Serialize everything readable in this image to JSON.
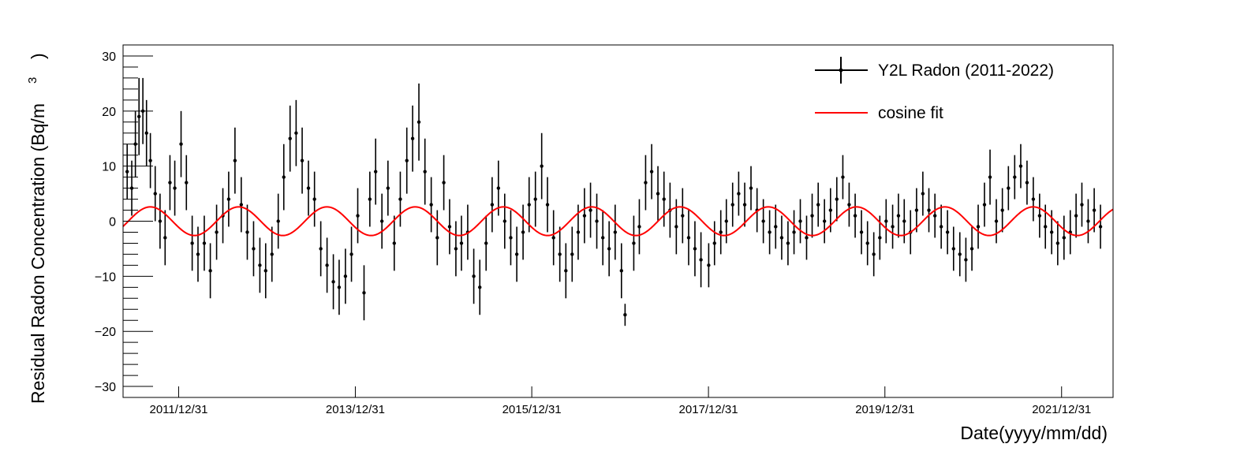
{
  "chart_data": {
    "type": "scatter",
    "title": "",
    "xlabel": "Date(yyyy/mm/dd)",
    "ylabel": "Residual Radon Concentration (Bq/m",
    "ylabel_superscript": "3",
    "ylabel_close": ")",
    "xlim": [
      "2011-05-15",
      "2022-08-01"
    ],
    "ylim": [
      -32,
      32
    ],
    "x_ticks": [
      {
        "date": "2011-12-31",
        "label": "2011/12/31"
      },
      {
        "date": "2013-12-31",
        "label": "2013/12/31"
      },
      {
        "date": "2015-12-31",
        "label": "2015/12/31"
      },
      {
        "date": "2017-12-31",
        "label": "2017/12/31"
      },
      {
        "date": "2019-12-31",
        "label": "2019/12/31"
      },
      {
        "date": "2021-12-31",
        "label": "2021/12/31"
      }
    ],
    "y_ticks": [
      30,
      20,
      10,
      0,
      -10,
      -20,
      -30
    ],
    "y_tick_labels": [
      "30",
      "20",
      "10",
      "0",
      "−10",
      "−20",
      "−30"
    ],
    "grid": false,
    "legend_position": "top-right",
    "legend": [
      {
        "label": "Y2L Radon (2011-2022)",
        "color": "#000000",
        "marker": "point-with-errorbars"
      },
      {
        "label": "cosine fit",
        "color": "#ff0000",
        "marker": "line"
      }
    ],
    "series": [
      {
        "name": "Y2L Radon (2011-2022)",
        "color": "#000000",
        "points": [
          {
            "x": "2011-06-01",
            "y": 9,
            "err": 5
          },
          {
            "x": "2011-06-20",
            "y": 6,
            "err": 5
          },
          {
            "x": "2011-07-05",
            "y": 14,
            "err": 6
          },
          {
            "x": "2011-07-20",
            "y": 19,
            "err": 7
          },
          {
            "x": "2011-08-05",
            "y": 20,
            "err": 6
          },
          {
            "x": "2011-08-20",
            "y": 16,
            "err": 6
          },
          {
            "x": "2011-09-05",
            "y": 11,
            "err": 5
          },
          {
            "x": "2011-09-25",
            "y": 5,
            "err": 5
          },
          {
            "x": "2011-10-15",
            "y": 0,
            "err": 5
          },
          {
            "x": "2011-11-05",
            "y": -3,
            "err": 5
          },
          {
            "x": "2011-11-25",
            "y": 7,
            "err": 5
          },
          {
            "x": "2011-12-15",
            "y": 6,
            "err": 5
          },
          {
            "x": "2012-01-10",
            "y": 14,
            "err": 6
          },
          {
            "x": "2012-02-01",
            "y": 7,
            "err": 5
          },
          {
            "x": "2012-02-25",
            "y": -4,
            "err": 5
          },
          {
            "x": "2012-03-20",
            "y": -6,
            "err": 5
          },
          {
            "x": "2012-04-15",
            "y": -4,
            "err": 5
          },
          {
            "x": "2012-05-10",
            "y": -9,
            "err": 5
          },
          {
            "x": "2012-06-05",
            "y": -2,
            "err": 5
          },
          {
            "x": "2012-07-01",
            "y": 1,
            "err": 5
          },
          {
            "x": "2012-07-25",
            "y": 4,
            "err": 5
          },
          {
            "x": "2012-08-20",
            "y": 11,
            "err": 6
          },
          {
            "x": "2012-09-15",
            "y": 3,
            "err": 5
          },
          {
            "x": "2012-10-10",
            "y": -2,
            "err": 5
          },
          {
            "x": "2012-11-05",
            "y": -5,
            "err": 5
          },
          {
            "x": "2012-12-01",
            "y": -8,
            "err": 5
          },
          {
            "x": "2012-12-25",
            "y": -9,
            "err": 5
          },
          {
            "x": "2013-01-20",
            "y": -6,
            "err": 5
          },
          {
            "x": "2013-02-15",
            "y": 0,
            "err": 5
          },
          {
            "x": "2013-03-10",
            "y": 8,
            "err": 6
          },
          {
            "x": "2013-04-05",
            "y": 15,
            "err": 6
          },
          {
            "x": "2013-04-30",
            "y": 16,
            "err": 6
          },
          {
            "x": "2013-05-25",
            "y": 11,
            "err": 6
          },
          {
            "x": "2013-06-20",
            "y": 6,
            "err": 5
          },
          {
            "x": "2013-07-15",
            "y": 4,
            "err": 5
          },
          {
            "x": "2013-08-10",
            "y": -5,
            "err": 5
          },
          {
            "x": "2013-09-05",
            "y": -8,
            "err": 5
          },
          {
            "x": "2013-10-01",
            "y": -11,
            "err": 5
          },
          {
            "x": "2013-10-25",
            "y": -12,
            "err": 5
          },
          {
            "x": "2013-11-20",
            "y": -10,
            "err": 5
          },
          {
            "x": "2013-12-15",
            "y": -6,
            "err": 5
          },
          {
            "x": "2014-01-10",
            "y": 1,
            "err": 5
          },
          {
            "x": "2014-02-05",
            "y": -13,
            "err": 5
          },
          {
            "x": "2014-03-01",
            "y": 4,
            "err": 5
          },
          {
            "x": "2014-03-25",
            "y": 9,
            "err": 6
          },
          {
            "x": "2014-04-20",
            "y": 0,
            "err": 5
          },
          {
            "x": "2014-05-15",
            "y": 6,
            "err": 5
          },
          {
            "x": "2014-06-10",
            "y": -4,
            "err": 5
          },
          {
            "x": "2014-07-05",
            "y": 4,
            "err": 5
          },
          {
            "x": "2014-08-01",
            "y": 11,
            "err": 6
          },
          {
            "x": "2014-08-25",
            "y": 15,
            "err": 6
          },
          {
            "x": "2014-09-20",
            "y": 18,
            "err": 7
          },
          {
            "x": "2014-10-15",
            "y": 9,
            "err": 6
          },
          {
            "x": "2014-11-10",
            "y": 3,
            "err": 5
          },
          {
            "x": "2014-12-05",
            "y": -3,
            "err": 5
          },
          {
            "x": "2015-01-01",
            "y": 7,
            "err": 5
          },
          {
            "x": "2015-01-25",
            "y": -1,
            "err": 5
          },
          {
            "x": "2015-02-20",
            "y": -5,
            "err": 5
          },
          {
            "x": "2015-03-15",
            "y": -4,
            "err": 5
          },
          {
            "x": "2015-04-10",
            "y": -2,
            "err": 5
          },
          {
            "x": "2015-05-05",
            "y": -10,
            "err": 5
          },
          {
            "x": "2015-05-30",
            "y": -12,
            "err": 5
          },
          {
            "x": "2015-06-25",
            "y": -4,
            "err": 5
          },
          {
            "x": "2015-07-20",
            "y": 3,
            "err": 5
          },
          {
            "x": "2015-08-15",
            "y": 6,
            "err": 5
          },
          {
            "x": "2015-09-10",
            "y": 0,
            "err": 5
          },
          {
            "x": "2015-10-05",
            "y": -3,
            "err": 5
          },
          {
            "x": "2015-10-30",
            "y": -6,
            "err": 5
          },
          {
            "x": "2015-11-25",
            "y": -2,
            "err": 5
          },
          {
            "x": "2015-12-20",
            "y": 3,
            "err": 5
          },
          {
            "x": "2016-01-15",
            "y": 4,
            "err": 5
          },
          {
            "x": "2016-02-10",
            "y": 10,
            "err": 6
          },
          {
            "x": "2016-03-05",
            "y": 3,
            "err": 5
          },
          {
            "x": "2016-03-30",
            "y": -3,
            "err": 5
          },
          {
            "x": "2016-04-25",
            "y": -6,
            "err": 5
          },
          {
            "x": "2016-05-20",
            "y": -9,
            "err": 5
          },
          {
            "x": "2016-06-15",
            "y": -6,
            "err": 5
          },
          {
            "x": "2016-07-10",
            "y": -2,
            "err": 5
          },
          {
            "x": "2016-08-05",
            "y": 1,
            "err": 5
          },
          {
            "x": "2016-08-30",
            "y": 2,
            "err": 5
          },
          {
            "x": "2016-09-25",
            "y": 0,
            "err": 5
          },
          {
            "x": "2016-10-20",
            "y": -3,
            "err": 5
          },
          {
            "x": "2016-11-15",
            "y": -5,
            "err": 5
          },
          {
            "x": "2016-12-10",
            "y": -2,
            "err": 5
          },
          {
            "x": "2017-01-05",
            "y": -9,
            "err": 5
          },
          {
            "x": "2017-01-20",
            "y": -17,
            "err": 2
          },
          {
            "x": "2017-02-25",
            "y": -4,
            "err": 5
          },
          {
            "x": "2017-03-20",
            "y": -1,
            "err": 5
          },
          {
            "x": "2017-04-15",
            "y": 7,
            "err": 5
          },
          {
            "x": "2017-05-10",
            "y": 9,
            "err": 5
          },
          {
            "x": "2017-06-05",
            "y": 5,
            "err": 5
          },
          {
            "x": "2017-06-30",
            "y": 4,
            "err": 5
          },
          {
            "x": "2017-07-25",
            "y": 2,
            "err": 5
          },
          {
            "x": "2017-08-20",
            "y": -1,
            "err": 5
          },
          {
            "x": "2017-09-15",
            "y": 1,
            "err": 5
          },
          {
            "x": "2017-10-10",
            "y": -3,
            "err": 5
          },
          {
            "x": "2017-11-05",
            "y": -5,
            "err": 5
          },
          {
            "x": "2017-11-30",
            "y": -7,
            "err": 5
          },
          {
            "x": "2018-01-01",
            "y": -8,
            "err": 4
          },
          {
            "x": "2018-01-25",
            "y": -4,
            "err": 4
          },
          {
            "x": "2018-02-20",
            "y": -2,
            "err": 4
          },
          {
            "x": "2018-03-15",
            "y": 0,
            "err": 4
          },
          {
            "x": "2018-04-10",
            "y": 3,
            "err": 4
          },
          {
            "x": "2018-05-05",
            "y": 5,
            "err": 4
          },
          {
            "x": "2018-05-30",
            "y": 3,
            "err": 4
          },
          {
            "x": "2018-06-25",
            "y": 6,
            "err": 4
          },
          {
            "x": "2018-07-20",
            "y": 2,
            "err": 4
          },
          {
            "x": "2018-08-15",
            "y": 0,
            "err": 4
          },
          {
            "x": "2018-09-10",
            "y": -2,
            "err": 4
          },
          {
            "x": "2018-10-05",
            "y": -1,
            "err": 4
          },
          {
            "x": "2018-10-30",
            "y": -3,
            "err": 4
          },
          {
            "x": "2018-11-25",
            "y": -4,
            "err": 4
          },
          {
            "x": "2018-12-20",
            "y": -2,
            "err": 4
          },
          {
            "x": "2019-01-15",
            "y": 0,
            "err": 4
          },
          {
            "x": "2019-02-10",
            "y": -3,
            "err": 4
          },
          {
            "x": "2019-03-05",
            "y": 1,
            "err": 4
          },
          {
            "x": "2019-03-30",
            "y": 3,
            "err": 4
          },
          {
            "x": "2019-04-25",
            "y": 0,
            "err": 4
          },
          {
            "x": "2019-05-20",
            "y": 2,
            "err": 4
          },
          {
            "x": "2019-06-15",
            "y": 4,
            "err": 4
          },
          {
            "x": "2019-07-10",
            "y": 8,
            "err": 4
          },
          {
            "x": "2019-08-05",
            "y": 3,
            "err": 4
          },
          {
            "x": "2019-08-30",
            "y": 1,
            "err": 4
          },
          {
            "x": "2019-09-25",
            "y": -2,
            "err": 4
          },
          {
            "x": "2019-10-20",
            "y": -4,
            "err": 4
          },
          {
            "x": "2019-11-15",
            "y": -6,
            "err": 4
          },
          {
            "x": "2019-12-10",
            "y": -3,
            "err": 4
          },
          {
            "x": "2020-01-05",
            "y": 0,
            "err": 4
          },
          {
            "x": "2020-02-01",
            "y": -1,
            "err": 4
          },
          {
            "x": "2020-02-25",
            "y": 1,
            "err": 4
          },
          {
            "x": "2020-03-20",
            "y": 0,
            "err": 4
          },
          {
            "x": "2020-04-15",
            "y": -2,
            "err": 4
          },
          {
            "x": "2020-05-10",
            "y": 2,
            "err": 4
          },
          {
            "x": "2020-06-05",
            "y": 5,
            "err": 4
          },
          {
            "x": "2020-06-30",
            "y": 2,
            "err": 4
          },
          {
            "x": "2020-07-25",
            "y": 1,
            "err": 4
          },
          {
            "x": "2020-08-20",
            "y": -1,
            "err": 4
          },
          {
            "x": "2020-09-15",
            "y": -2,
            "err": 4
          },
          {
            "x": "2020-10-10",
            "y": -5,
            "err": 4
          },
          {
            "x": "2020-11-05",
            "y": -6,
            "err": 4
          },
          {
            "x": "2020-11-30",
            "y": -7,
            "err": 4
          },
          {
            "x": "2020-12-25",
            "y": -5,
            "err": 4
          },
          {
            "x": "2021-01-20",
            "y": -1,
            "err": 4
          },
          {
            "x": "2021-02-15",
            "y": 3,
            "err": 4
          },
          {
            "x": "2021-03-10",
            "y": 8,
            "err": 5
          },
          {
            "x": "2021-04-05",
            "y": 0,
            "err": 4
          },
          {
            "x": "2021-04-30",
            "y": 2,
            "err": 4
          },
          {
            "x": "2021-05-25",
            "y": 6,
            "err": 4
          },
          {
            "x": "2021-06-20",
            "y": 8,
            "err": 4
          },
          {
            "x": "2021-07-15",
            "y": 10,
            "err": 4
          },
          {
            "x": "2021-08-10",
            "y": 7,
            "err": 4
          },
          {
            "x": "2021-09-05",
            "y": 4,
            "err": 4
          },
          {
            "x": "2021-10-01",
            "y": 1,
            "err": 4
          },
          {
            "x": "2021-10-25",
            "y": -1,
            "err": 4
          },
          {
            "x": "2021-11-20",
            "y": -2,
            "err": 4
          },
          {
            "x": "2021-12-15",
            "y": -4,
            "err": 4
          },
          {
            "x": "2022-01-10",
            "y": -3,
            "err": 4
          },
          {
            "x": "2022-02-05",
            "y": -2,
            "err": 4
          },
          {
            "x": "2022-03-01",
            "y": 1,
            "err": 4
          },
          {
            "x": "2022-03-25",
            "y": 3,
            "err": 4
          },
          {
            "x": "2022-04-20",
            "y": 0,
            "err": 4
          },
          {
            "x": "2022-05-15",
            "y": 2,
            "err": 4
          },
          {
            "x": "2022-06-10",
            "y": -1,
            "err": 4
          }
        ]
      },
      {
        "name": "cosine fit",
        "color": "#ff0000",
        "function": "cosine",
        "amplitude": 2.6,
        "period_days": 365.25,
        "peak_date": "2011-09-05",
        "x_range": [
          "2011-05-15",
          "2022-08-01"
        ]
      }
    ]
  }
}
